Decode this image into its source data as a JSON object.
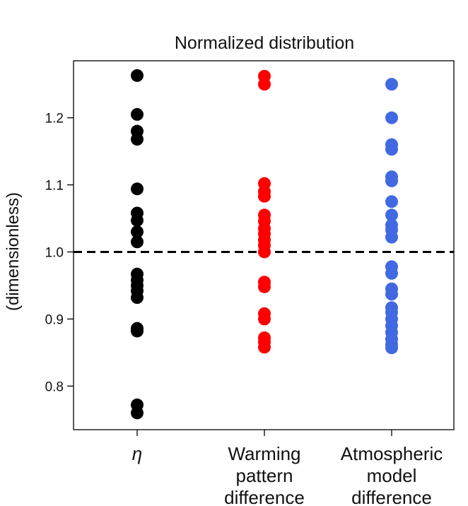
{
  "chart_data": {
    "type": "scatter",
    "title": "Normalized distribution",
    "ylabel": "(dimensionless)",
    "ylim": [
      0.735,
      1.285
    ],
    "yticks": [
      0.8,
      0.9,
      1.0,
      1.1,
      1.2
    ],
    "ytick_labels": [
      "0.8",
      "0.9",
      "1.0",
      "1.1",
      "1.2"
    ],
    "reference_line": {
      "y": 1.0,
      "style": "dashed",
      "color": "#000000"
    },
    "grid": false,
    "categories": [
      {
        "lines": [
          "η"
        ],
        "italic": true
      },
      {
        "lines": [
          "Warming",
          "pattern",
          "difference"
        ],
        "italic": false
      },
      {
        "lines": [
          "Atmospheric",
          "model",
          "difference"
        ],
        "italic": false
      }
    ],
    "series": [
      {
        "color": "#000000",
        "values": [
          1.263,
          1.205,
          1.18,
          1.168,
          1.094,
          1.058,
          1.047,
          1.03,
          1.015,
          0.967,
          0.958,
          0.95,
          0.942,
          0.932,
          0.886,
          0.882,
          0.772,
          0.76
        ]
      },
      {
        "color": "#ff0000",
        "values": [
          1.262,
          1.25,
          1.102,
          1.09,
          1.083,
          1.055,
          1.046,
          1.035,
          1.027,
          1.018,
          1.01,
          1.0,
          0.955,
          0.948,
          0.908,
          0.9,
          0.872,
          0.866,
          0.858
        ]
      },
      {
        "color": "#4169e1",
        "values": [
          1.25,
          1.2,
          1.16,
          1.153,
          1.112,
          1.106,
          1.075,
          1.055,
          1.04,
          1.033,
          1.022,
          0.978,
          0.968,
          0.945,
          0.937,
          0.917,
          0.91,
          0.9,
          0.89,
          0.88,
          0.87,
          0.862,
          0.857
        ]
      }
    ]
  }
}
